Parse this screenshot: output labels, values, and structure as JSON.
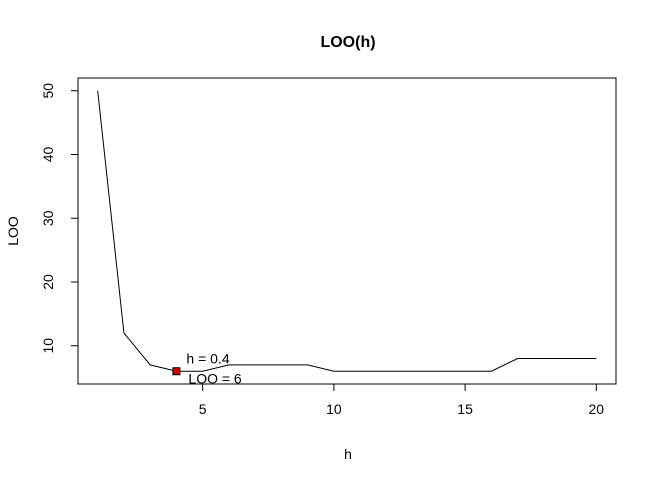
{
  "chart_data": {
    "type": "line",
    "title": "LOO(h)",
    "xlabel": "h",
    "ylabel": "LOO",
    "xlim": [
      0.25,
      20.75
    ],
    "ylim": [
      4,
      52
    ],
    "x_ticks": [
      5,
      10,
      15,
      20
    ],
    "y_ticks": [
      10,
      20,
      30,
      40,
      50
    ],
    "series": [
      {
        "x": [
          1,
          2,
          3,
          4,
          5,
          6,
          7,
          8,
          9,
          10,
          11,
          12,
          13,
          14,
          15,
          16,
          17,
          18,
          19,
          20
        ],
        "y": [
          50,
          12,
          7,
          6,
          6,
          7,
          7,
          7,
          7,
          6,
          6,
          6,
          6,
          6,
          6,
          6,
          8,
          8,
          8,
          8
        ],
        "color": "#000000"
      }
    ],
    "highlight_point": {
      "x": 4,
      "y": 6,
      "fill": "#cc0000"
    },
    "annotations": {
      "h_text": "h =  0.4",
      "loo_text": "LOO =  6"
    },
    "grid": false,
    "legend": "none"
  }
}
